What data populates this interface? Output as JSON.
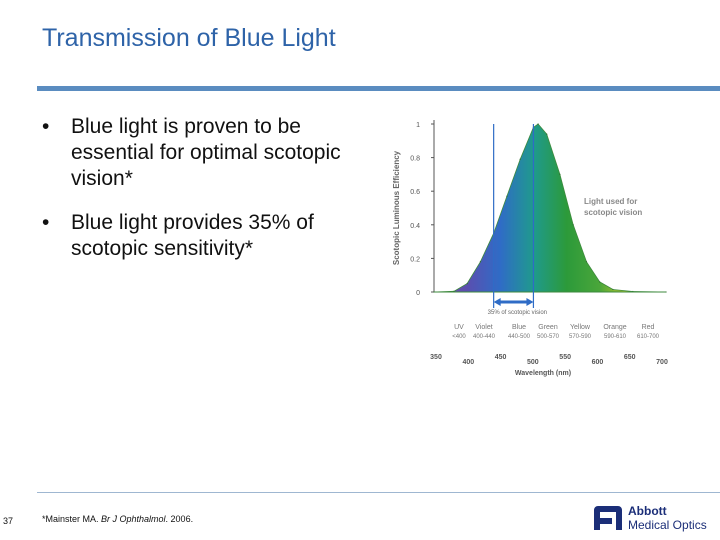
{
  "slide": {
    "title": "Transmission of Blue Light",
    "bullets": [
      "Blue light is proven to be essential for optimal scotopic vision*",
      "Blue light provides 35% of scotopic sensitivity*"
    ],
    "page_number": "37",
    "footnote": {
      "before": "*Mainster MA. ",
      "journal": "Br J Ophthalmol",
      "after": ". 2006."
    },
    "logo": {
      "line1": "Abbott",
      "line2": "Medical Optics"
    },
    "colors": {
      "title": "#2e63a8",
      "rule": "#5a8cc0",
      "brand": "#1b2e78"
    }
  },
  "chart_data": {
    "type": "area",
    "ylabel": "Scotopic Luminous Efficiency",
    "xlabel": "Wavelength (nm)",
    "xlim": [
      350,
      700
    ],
    "ylim": [
      0,
      1
    ],
    "y_ticks": [
      "0",
      "0.2",
      "0.4",
      "0.6",
      "0.8",
      "1"
    ],
    "y_tick_values": [
      0,
      0.2,
      0.4,
      0.6,
      0.8,
      1
    ],
    "x_ticks": [
      "350",
      "400",
      "450",
      "500",
      "550",
      "600",
      "650",
      "700"
    ],
    "x_tick_values": [
      350,
      400,
      450,
      500,
      550,
      600,
      650,
      700
    ],
    "x": [
      350,
      380,
      400,
      420,
      440,
      460,
      480,
      500,
      507,
      520,
      540,
      560,
      580,
      600,
      620,
      650,
      700
    ],
    "values": [
      0,
      0.004,
      0.05,
      0.18,
      0.35,
      0.57,
      0.79,
      0.98,
      1.0,
      0.94,
      0.7,
      0.4,
      0.18,
      0.06,
      0.015,
      0.003,
      0
    ],
    "annotation": {
      "text": "Light used for scotopic vision",
      "lines": [
        "Light used for",
        "scotopic vision"
      ]
    },
    "blue_band": {
      "label": "35% of scotopic vision",
      "from": 440,
      "to": 500
    },
    "spectrum_bands": [
      {
        "name": "UV",
        "range": "<400"
      },
      {
        "name": "Violet",
        "range": "400-440"
      },
      {
        "name": "Blue",
        "range": "440-500"
      },
      {
        "name": "Green",
        "range": "500-570"
      },
      {
        "name": "Yellow",
        "range": "570-590"
      },
      {
        "name": "Orange",
        "range": "590-610"
      },
      {
        "name": "Red",
        "range": "610-700"
      }
    ],
    "spectrum_colors": [
      "#7b4aa3",
      "#5a4fb0",
      "#2f6cc6",
      "#1f9a8d",
      "#2c9a3a",
      "#4aa63a",
      "#d6d02a",
      "#e0a02a"
    ]
  }
}
